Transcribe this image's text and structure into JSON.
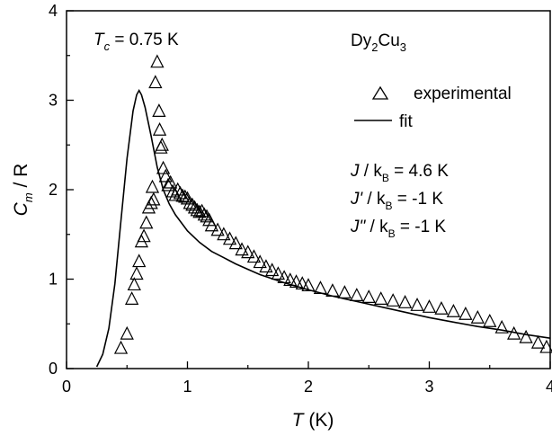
{
  "chart_data": {
    "type": "scatter",
    "xlim": [
      0,
      4
    ],
    "ylim": [
      0,
      4
    ],
    "x_ticks": [
      "0",
      "1",
      "2",
      "3",
      "4"
    ],
    "y_ticks": [
      "0",
      "1",
      "2",
      "3",
      "4"
    ],
    "xlabel": {
      "symbol": "T",
      "unit": " (K)"
    },
    "ylabel": {
      "symbol": "C",
      "sub": "m",
      "rest": " / R"
    },
    "grid": false,
    "legend_position": "top-right",
    "annotations": {
      "tc": {
        "symbol": "T",
        "sub": "c",
        "rest": " = 0.75 K"
      },
      "compound": {
        "a": "Dy",
        "a_sub": "2",
        "b": "Cu",
        "b_sub": "3"
      },
      "param_j": {
        "pre": "J",
        "mid": " / k",
        "sub": "B",
        "post": " = 4.6 K"
      },
      "param_jp": {
        "pre": "J'",
        "mid": " / k",
        "sub": "B",
        "post": " = -1 K"
      },
      "param_jpp": {
        "pre": "J\"",
        "mid": " / k",
        "sub": "B",
        "post": " = -1 K"
      }
    },
    "series": [
      {
        "name": "experimental",
        "marker": "open-triangle",
        "points": [
          [
            0.45,
            0.23
          ],
          [
            0.5,
            0.39
          ],
          [
            0.54,
            0.78
          ],
          [
            0.56,
            0.94
          ],
          [
            0.58,
            1.06
          ],
          [
            0.6,
            1.2
          ],
          [
            0.62,
            1.42
          ],
          [
            0.64,
            1.48
          ],
          [
            0.66,
            1.63
          ],
          [
            0.68,
            1.8
          ],
          [
            0.7,
            1.85
          ],
          [
            0.71,
            2.03
          ],
          [
            0.72,
            1.89
          ],
          [
            0.735,
            3.2
          ],
          [
            0.75,
            3.43
          ],
          [
            0.765,
            2.88
          ],
          [
            0.77,
            2.67
          ],
          [
            0.78,
            2.47
          ],
          [
            0.79,
            2.5
          ],
          [
            0.8,
            2.24
          ],
          [
            0.82,
            2.15
          ],
          [
            0.84,
            2.05
          ],
          [
            0.86,
            2.08
          ],
          [
            0.88,
            1.98
          ],
          [
            0.9,
            1.94
          ],
          [
            0.92,
            2.0
          ],
          [
            0.94,
            1.96
          ],
          [
            0.96,
            1.93
          ],
          [
            0.98,
            1.92
          ],
          [
            1.0,
            1.9
          ],
          [
            1.02,
            1.85
          ],
          [
            1.04,
            1.83
          ],
          [
            1.06,
            1.8
          ],
          [
            1.08,
            1.77
          ],
          [
            1.1,
            1.75
          ],
          [
            1.12,
            1.76
          ],
          [
            1.14,
            1.72
          ],
          [
            1.16,
            1.7
          ],
          [
            1.18,
            1.66
          ],
          [
            1.2,
            1.6
          ],
          [
            1.25,
            1.55
          ],
          [
            1.3,
            1.5
          ],
          [
            1.35,
            1.45
          ],
          [
            1.4,
            1.4
          ],
          [
            1.45,
            1.33
          ],
          [
            1.5,
            1.3
          ],
          [
            1.55,
            1.25
          ],
          [
            1.6,
            1.19
          ],
          [
            1.65,
            1.14
          ],
          [
            1.7,
            1.1
          ],
          [
            1.75,
            1.06
          ],
          [
            1.8,
            1.02
          ],
          [
            1.85,
            0.99
          ],
          [
            1.9,
            0.97
          ],
          [
            1.95,
            0.95
          ],
          [
            2.0,
            0.93
          ],
          [
            2.1,
            0.9
          ],
          [
            2.2,
            0.87
          ],
          [
            2.3,
            0.85
          ],
          [
            2.4,
            0.82
          ],
          [
            2.5,
            0.8
          ],
          [
            2.6,
            0.78
          ],
          [
            2.7,
            0.76
          ],
          [
            2.8,
            0.74
          ],
          [
            2.9,
            0.71
          ],
          [
            3.0,
            0.69
          ],
          [
            3.1,
            0.67
          ],
          [
            3.2,
            0.64
          ],
          [
            3.3,
            0.61
          ],
          [
            3.4,
            0.57
          ],
          [
            3.5,
            0.53
          ],
          [
            3.6,
            0.46
          ],
          [
            3.7,
            0.39
          ],
          [
            3.8,
            0.35
          ],
          [
            3.9,
            0.29
          ],
          [
            3.97,
            0.24
          ]
        ]
      },
      {
        "name": "fit",
        "marker": "line",
        "points": [
          [
            0.25,
            0.02
          ],
          [
            0.3,
            0.16
          ],
          [
            0.35,
            0.45
          ],
          [
            0.4,
            0.95
          ],
          [
            0.45,
            1.65
          ],
          [
            0.5,
            2.35
          ],
          [
            0.55,
            2.88
          ],
          [
            0.58,
            3.06
          ],
          [
            0.6,
            3.11
          ],
          [
            0.62,
            3.06
          ],
          [
            0.65,
            2.92
          ],
          [
            0.7,
            2.6
          ],
          [
            0.75,
            2.25
          ],
          [
            0.8,
            2.0
          ],
          [
            0.85,
            1.84
          ],
          [
            0.9,
            1.72
          ],
          [
            1.0,
            1.54
          ],
          [
            1.1,
            1.41
          ],
          [
            1.2,
            1.31
          ],
          [
            1.3,
            1.24
          ],
          [
            1.4,
            1.17
          ],
          [
            1.5,
            1.11
          ],
          [
            1.6,
            1.05
          ],
          [
            1.8,
            0.96
          ],
          [
            2.0,
            0.88
          ],
          [
            2.2,
            0.81
          ],
          [
            2.4,
            0.75
          ],
          [
            2.6,
            0.69
          ],
          [
            2.8,
            0.63
          ],
          [
            3.0,
            0.57
          ],
          [
            3.2,
            0.52
          ],
          [
            3.4,
            0.47
          ],
          [
            3.6,
            0.43
          ],
          [
            3.8,
            0.38
          ],
          [
            4.0,
            0.34
          ]
        ]
      }
    ]
  }
}
